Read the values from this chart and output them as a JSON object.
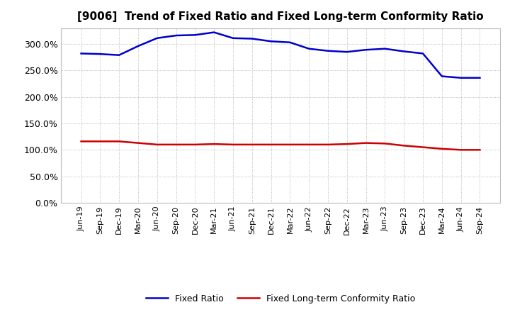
{
  "title": "[9006]  Trend of Fixed Ratio and Fixed Long-term Conformity Ratio",
  "x_labels": [
    "Jun-19",
    "Sep-19",
    "Dec-19",
    "Mar-20",
    "Jun-20",
    "Sep-20",
    "Dec-20",
    "Mar-21",
    "Jun-21",
    "Sep-21",
    "Dec-21",
    "Mar-22",
    "Jun-22",
    "Sep-22",
    "Dec-22",
    "Mar-23",
    "Jun-23",
    "Sep-23",
    "Dec-23",
    "Mar-24",
    "Jun-24",
    "Sep-24"
  ],
  "fixed_ratio": [
    282,
    281,
    279,
    296,
    311,
    316,
    317,
    322,
    311,
    310,
    305,
    303,
    291,
    287,
    285,
    289,
    291,
    286,
    282,
    239,
    236,
    236
  ],
  "fixed_lt_ratio": [
    116,
    116,
    116,
    113,
    110,
    110,
    110,
    111,
    110,
    110,
    110,
    110,
    110,
    110,
    111,
    113,
    112,
    108,
    105,
    102,
    100,
    100
  ],
  "fixed_ratio_color": "#0000cc",
  "fixed_lt_ratio_color": "#cc0000",
  "ylim": [
    0,
    330
  ],
  "yticks": [
    0,
    50,
    100,
    150,
    200,
    250,
    300
  ],
  "background_color": "#ffffff",
  "plot_bg_color": "#ffffff",
  "grid_color": "#999999",
  "legend_fixed": "Fixed Ratio",
  "legend_lt": "Fixed Long-term Conformity Ratio",
  "title_fontsize": 11,
  "line_width": 1.8
}
